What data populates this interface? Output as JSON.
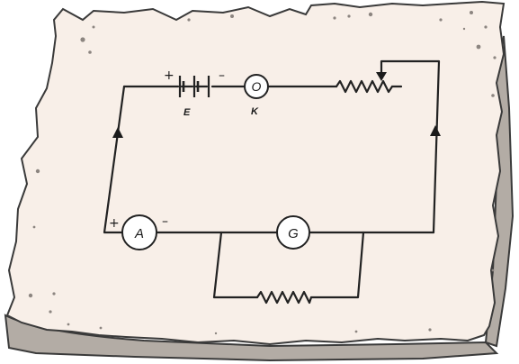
{
  "diagram": {
    "colors": {
      "paper": "#f8efe8",
      "paper_edge": "#e6dcd4",
      "curl": "#b3aca5",
      "outline": "#3a3a3a",
      "wire": "#222222"
    },
    "battery": {
      "label": "E",
      "plus": "+",
      "minus": "–"
    },
    "key": {
      "symbol": "O",
      "label": "K"
    },
    "ammeter": {
      "symbol": "A",
      "plus": "+",
      "minus": "–"
    },
    "galvanometer": {
      "symbol": "G"
    },
    "rheostat": {
      "icon": "variable-resistor-icon"
    },
    "shunt": {
      "icon": "resistor-icon"
    }
  }
}
